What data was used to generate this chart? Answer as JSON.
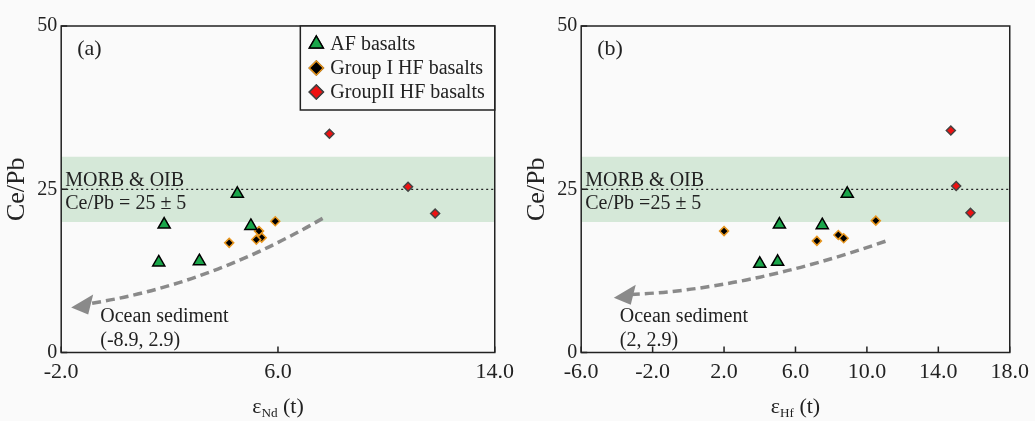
{
  "chart_data": [
    {
      "type": "scatter",
      "title": "(a)",
      "xlabel": "ε$_{Nd}$ (t)",
      "ylabel": "Ce/Pb",
      "xlim": [
        -2,
        14
      ],
      "xticks": [
        {
          "value": -2,
          "label": "-2.0"
        },
        {
          "value": 6,
          "label": "6.0"
        },
        {
          "value": 14,
          "label": "14.0"
        }
      ],
      "ylim": [
        0,
        50
      ],
      "yticks": [
        0,
        25,
        50
      ],
      "grid": false,
      "legend": "top right",
      "series": [
        {
          "name": "AF basalts",
          "color": "#1aa64a",
          "marker": "triangle",
          "x": [
            1.8,
            1.6,
            3.1,
            4.5,
            5.0
          ],
          "values": [
            19.6,
            13.8,
            14.0,
            24.3,
            19.4
          ]
        },
        {
          "name": "Group I HF basalts",
          "color": "#000000",
          "marker": "diamond",
          "x": [
            4.2,
            5.3,
            5.4,
            5.2,
            5.9
          ],
          "values": [
            16.8,
            18.6,
            17.6,
            17.3,
            20.1
          ]
        },
        {
          "name": "GroupII HF basalts",
          "color": "#ee1111",
          "marker": "diamond",
          "x": [
            7.9,
            10.8,
            11.8
          ],
          "values": [
            33.5,
            25.4,
            21.3
          ]
        }
      ],
      "bands": [
        {
          "axis": "y",
          "from": 20,
          "to": 30,
          "color": "#d5e8d8",
          "label": "MORB & OIB"
        }
      ],
      "ref_lines": [
        {
          "axis": "y",
          "value": 25,
          "line_style": "dotted",
          "label": "Ce/Pb = 25 ± 5"
        }
      ],
      "annotations": [
        "Ocean sediment",
        "(-8.9, 2.9)"
      ]
    },
    {
      "type": "scatter",
      "title": "(b)",
      "xlabel": "ε$_{Hf}$ (t)",
      "ylabel": "Ce/Pb",
      "xlim": [
        -6,
        18
      ],
      "xticks": [
        {
          "value": -6,
          "label": "-6.0"
        },
        {
          "value": -2,
          "label": "-2.0"
        },
        {
          "value": 2,
          "label": "2.0"
        },
        {
          "value": 6,
          "label": "6.0"
        },
        {
          "value": 10,
          "label": "10.0"
        },
        {
          "value": 14,
          "label": "14.0"
        },
        {
          "value": 18,
          "label": "18.0"
        }
      ],
      "ylim": [
        0,
        50
      ],
      "yticks": [
        0,
        25,
        50
      ],
      "grid": false,
      "legend": false,
      "series": [
        {
          "color": "#1aa64a",
          "marker": "triangle",
          "x": [
            8.9,
            5.1,
            7.5,
            4.0,
            5.0
          ],
          "values": [
            24.3,
            19.6,
            19.5,
            13.6,
            13.9
          ]
        },
        {
          "color": "#000000",
          "marker": "diamond",
          "x": [
            2.0,
            7.2,
            8.4,
            8.7,
            10.5
          ],
          "values": [
            18.6,
            17.1,
            18.0,
            17.5,
            20.2
          ]
        },
        {
          "color": "#ee1111",
          "marker": "diamond",
          "x": [
            14.7,
            15.0,
            15.8
          ],
          "values": [
            34.0,
            25.5,
            21.4
          ]
        }
      ],
      "bands": [
        {
          "axis": "y",
          "from": 20,
          "to": 30,
          "color": "#d5e8d8",
          "label": "MORB & OIB"
        }
      ],
      "ref_lines": [
        {
          "axis": "y",
          "value": 25,
          "line_style": "dotted",
          "label": "Ce/Pb =25 ± 5"
        }
      ],
      "annotations": [
        "Ocean sediment",
        "(2, 2.9)"
      ]
    }
  ]
}
